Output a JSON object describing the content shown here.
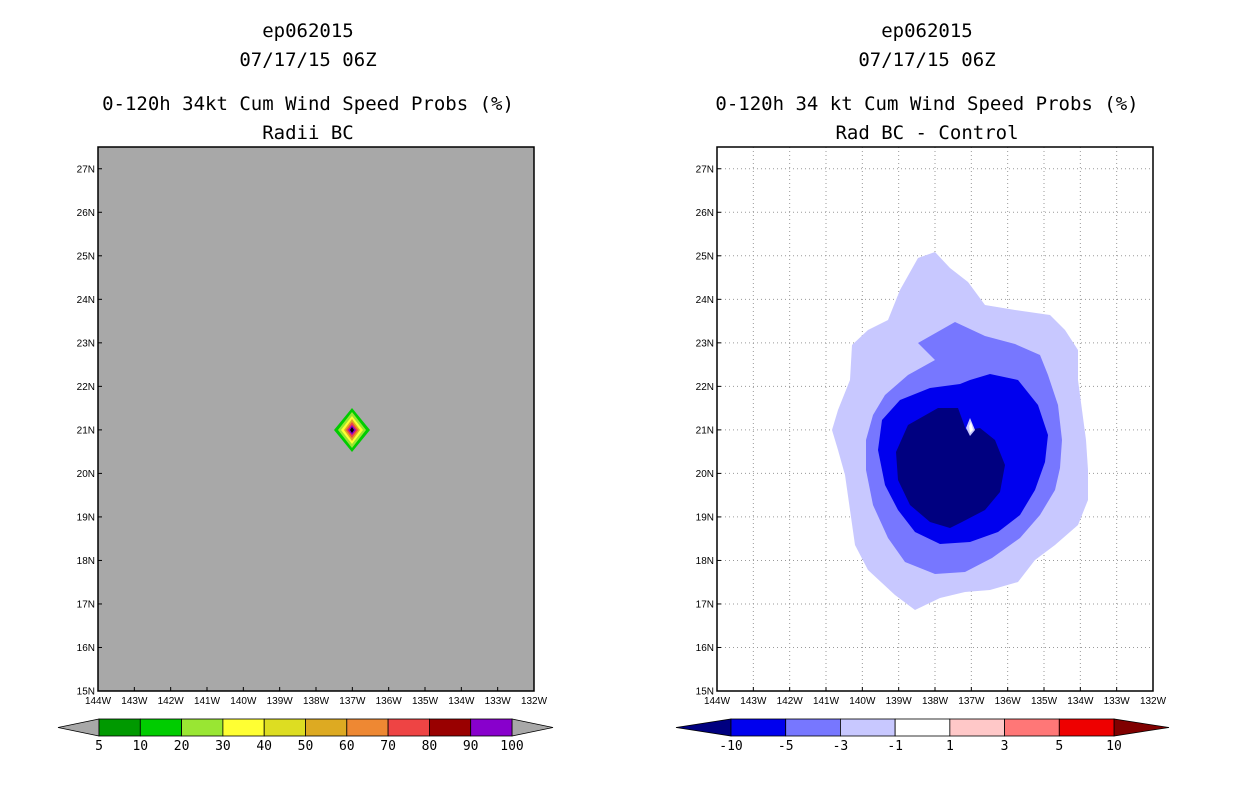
{
  "chart_data": [
    {
      "type": "heatmap",
      "title": [
        "ep062015",
        "07/17/15 06Z",
        "0-120h 34kt Cum Wind Speed Probs (%)",
        "Radii BC"
      ],
      "xlabel": "",
      "ylabel": "",
      "xlim": [
        -144,
        -132
      ],
      "ylim": [
        15,
        27.5
      ],
      "x_tick_labels": [
        "144W",
        "143W",
        "142W",
        "141W",
        "140W",
        "139W",
        "138W",
        "137W",
        "136W",
        "135W",
        "134W",
        "133W",
        "132W"
      ],
      "y_tick_labels": [
        "15N",
        "16N",
        "17N",
        "18N",
        "19N",
        "20N",
        "21N",
        "22N",
        "23N",
        "24N",
        "25N",
        "26N",
        "27N"
      ],
      "background_color": "#a8a8a8",
      "grid": false,
      "feature": {
        "description": "small probability diamond",
        "center_lon": -137.05,
        "center_lat": 21.0
      },
      "colorbar": {
        "labels": [
          "5",
          "10",
          "20",
          "30",
          "40",
          "50",
          "60",
          "70",
          "80",
          "90",
          "100"
        ],
        "colors": [
          "#009900",
          "#00cc00",
          "#99e633",
          "#ffff33",
          "#dddd22",
          "#ddaa22",
          "#ee8833",
          "#ee4444",
          "#990000",
          "#8800cc"
        ],
        "under_color": "#a8a8a8",
        "over_color": "#a8a8a8"
      }
    },
    {
      "type": "heatmap",
      "title": [
        "ep062015",
        "07/17/15 06Z",
        "0-120h 34 kt Cum Wind Speed Probs (%)",
        "Rad BC - Control"
      ],
      "xlabel": "",
      "ylabel": "",
      "xlim": [
        -144,
        -132
      ],
      "ylim": [
        15,
        27.5
      ],
      "x_tick_labels": [
        "144W",
        "143W",
        "142W",
        "141W",
        "140W",
        "139W",
        "138W",
        "137W",
        "136W",
        "135W",
        "134W",
        "133W",
        "132W"
      ],
      "y_tick_labels": [
        "15N",
        "16N",
        "17N",
        "18N",
        "19N",
        "20N",
        "21N",
        "22N",
        "23N",
        "24N",
        "25N",
        "26N",
        "27N"
      ],
      "background_color": "#ffffff",
      "grid": true,
      "feature": {
        "description": "negative difference region centred near storm",
        "center_lon": -137.6,
        "center_lat": 20.5
      },
      "colorbar": {
        "labels": [
          "-10",
          "-5",
          "-3",
          "-1",
          "1",
          "3",
          "5",
          "10"
        ],
        "colors": [
          "#0000ee",
          "#7777ff",
          "#c8c8ff",
          "#ffffff",
          "#ffc8c8",
          "#ff7777",
          "#ee0000"
        ],
        "under_color": "#000080",
        "over_color": "#800000"
      }
    }
  ]
}
